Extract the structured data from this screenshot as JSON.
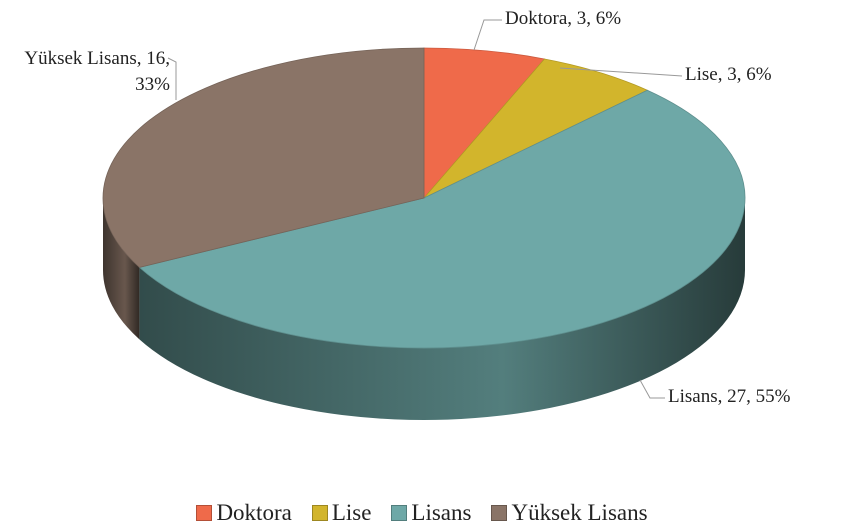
{
  "chart_data": {
    "type": "pie3d",
    "categories": [
      "Doktora",
      "Lise",
      "Lisans",
      "Yüksek Lisans"
    ],
    "values": [
      3,
      3,
      27,
      16
    ],
    "value_labels": [
      "Doktora, 3, 6%",
      "Lise, 3, 6%",
      "Lisans, 27, 55%",
      "Yüksek Lisans, 16, 33%"
    ],
    "colors": [
      "#ef6a4a",
      "#d2b52c",
      "#6ea8a7",
      "#8a7467"
    ],
    "legend": "bottom"
  }
}
